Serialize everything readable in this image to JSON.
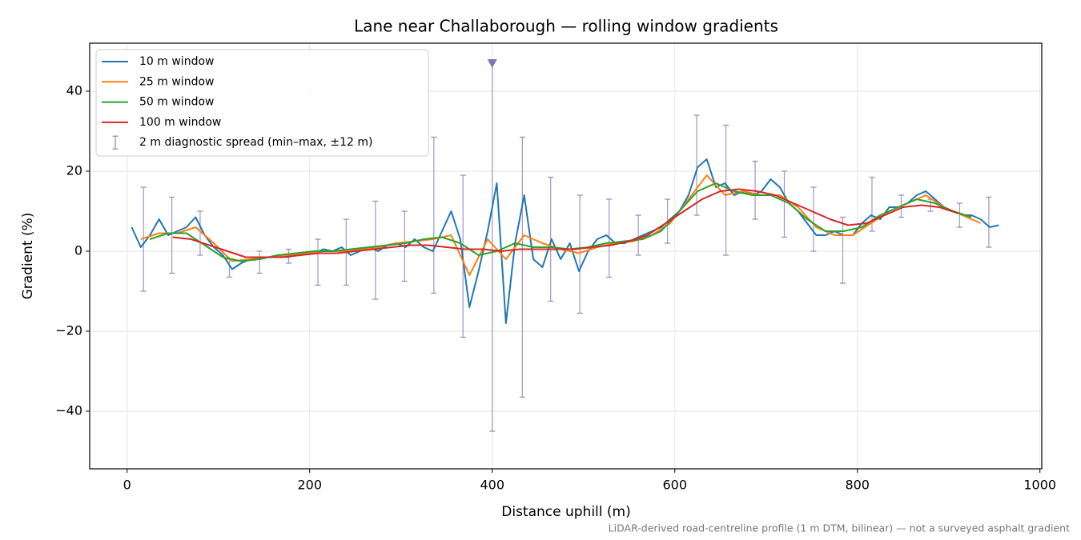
{
  "chart_data": {
    "type": "line",
    "title": "Lane near Challaborough — rolling window gradients",
    "xlabel": "Distance uphill (m)",
    "ylabel": "Gradient (%)",
    "note": "LiDAR-derived road-centreline profile (1 m DTM, bilinear) — not a surveyed asphalt gradient",
    "xlim": [
      -41,
      1002
    ],
    "ylim": [
      -54.4,
      52
    ],
    "xticks": [
      0,
      200,
      400,
      600,
      800,
      1000
    ],
    "yticks": [
      {
        "value": -40,
        "label": "−40"
      },
      {
        "value": -20,
        "label": "−20"
      },
      0,
      20,
      40
    ],
    "grid": true,
    "legend": "upper left",
    "series": [
      {
        "name": "10 m window",
        "color": "#1f77b4",
        "x": [
          5,
          15,
          25,
          35,
          45,
          55,
          65,
          75,
          85,
          95,
          105,
          115,
          125,
          135,
          145,
          155,
          165,
          175,
          185,
          195,
          205,
          215,
          225,
          235,
          245,
          255,
          265,
          275,
          285,
          295,
          305,
          315,
          325,
          335,
          345,
          355,
          365,
          375,
          385,
          395,
          405,
          415,
          425,
          435,
          445,
          455,
          465,
          475,
          485,
          495,
          505,
          515,
          525,
          535,
          545,
          555,
          565,
          575,
          585,
          595,
          605,
          615,
          625,
          635,
          645,
          655,
          665,
          675,
          685,
          695,
          705,
          715,
          725,
          735,
          745,
          755,
          765,
          775,
          785,
          795,
          805,
          815,
          825,
          835,
          845,
          855,
          865,
          875,
          885,
          895,
          905,
          915,
          925,
          935,
          945,
          955
        ],
        "values": [
          6,
          1,
          4,
          8,
          4,
          5,
          6,
          8.5,
          4,
          1,
          -1,
          -4.5,
          -3,
          -2,
          -2,
          -1.5,
          -1,
          -1.5,
          -1,
          -0.5,
          -0.5,
          0.5,
          0,
          1,
          -1,
          0,
          1,
          0,
          1.5,
          2,
          1,
          3,
          1,
          0,
          5,
          10,
          3,
          -14,
          -5,
          5,
          17,
          -18,
          2,
          14,
          -2,
          -4,
          3,
          -2,
          2,
          -5,
          0,
          3,
          4,
          2,
          2,
          3,
          4,
          5,
          6,
          8,
          10,
          14,
          21,
          23,
          16,
          17,
          14,
          15,
          14,
          15,
          18,
          16,
          12,
          10,
          7,
          4,
          4,
          5,
          4,
          4,
          7,
          9,
          8,
          11,
          11,
          12,
          14,
          15,
          13,
          11,
          10,
          9,
          9,
          8,
          6,
          6.5
        ]
      },
      {
        "name": "25 m window",
        "color": "#ff7f0e",
        "x": [
          15,
          35,
          55,
          75,
          95,
          115,
          135,
          155,
          175,
          195,
          215,
          235,
          255,
          275,
          295,
          315,
          335,
          355,
          375,
          395,
          415,
          435,
          455,
          475,
          495,
          515,
          535,
          555,
          575,
          595,
          615,
          635,
          655,
          675,
          695,
          715,
          735,
          755,
          775,
          795,
          815,
          835,
          855,
          875,
          895,
          915,
          935
        ],
        "values": [
          3,
          4.5,
          4.5,
          6,
          2,
          -2.5,
          -2,
          -1.5,
          -1,
          -0.5,
          0,
          0,
          0.5,
          1,
          2,
          2.5,
          3,
          4,
          -6,
          3,
          -2,
          4,
          2,
          0.5,
          -0.5,
          1,
          2,
          2.5,
          4,
          7,
          13,
          19,
          14,
          15,
          14,
          14,
          11,
          6,
          4,
          4,
          7,
          10,
          12,
          14,
          11,
          9,
          7
        ]
      },
      {
        "name": "50 m window",
        "color": "#2ca02c",
        "x": [
          25,
          45,
          65,
          85,
          105,
          125,
          145,
          165,
          185,
          205,
          225,
          245,
          265,
          285,
          305,
          325,
          345,
          365,
          385,
          405,
          425,
          445,
          465,
          485,
          505,
          525,
          545,
          565,
          585,
          605,
          625,
          645,
          665,
          685,
          705,
          725,
          745,
          765,
          785,
          805,
          825,
          845,
          865,
          885,
          905,
          925
        ],
        "values": [
          3,
          4.5,
          4.5,
          1.5,
          -1.5,
          -2.5,
          -2,
          -1,
          -0.5,
          0,
          0,
          0.5,
          1,
          1.5,
          2,
          3,
          3.5,
          2,
          -1,
          0,
          2,
          1,
          1,
          0.5,
          1,
          2,
          2.5,
          3,
          5,
          10,
          15,
          17,
          15,
          14,
          14,
          12,
          8,
          5,
          5,
          6,
          9,
          11,
          13,
          12,
          10,
          8.5
        ]
      },
      {
        "name": "100 m window",
        "color": "#d62728",
        "x": [
          50,
          70,
          90,
          110,
          130,
          150,
          170,
          190,
          210,
          230,
          250,
          270,
          290,
          310,
          330,
          350,
          370,
          390,
          410,
          430,
          450,
          470,
          490,
          510,
          530,
          550,
          570,
          590,
          610,
          630,
          650,
          670,
          690,
          710,
          730,
          750,
          770,
          790,
          810,
          830,
          850,
          870,
          890,
          910
        ],
        "values": [
          3.5,
          3,
          1.5,
          0,
          -1.5,
          -1.5,
          -1.5,
          -1,
          -0.5,
          -0.5,
          0,
          0.5,
          1,
          1.5,
          1.5,
          1,
          0.5,
          0.5,
          0,
          0.5,
          0.5,
          0.5,
          0.5,
          1,
          1.5,
          2.5,
          4,
          7,
          10,
          13,
          15,
          15.5,
          15,
          14,
          12,
          10,
          8,
          6.5,
          7,
          9,
          11,
          11.5,
          11,
          9.5
        ]
      }
    ],
    "errorbars": {
      "name": "2 m diagnostic spread (min–max, ±12 m)",
      "color": "#9a8fbf",
      "x": [
        18,
        49,
        80,
        112,
        145,
        177,
        209,
        240,
        272,
        304,
        336,
        368,
        400,
        433,
        464,
        496,
        528,
        560,
        592,
        624,
        656,
        688,
        720,
        752,
        784,
        816,
        848,
        880,
        912,
        944
      ],
      "low": [
        -10,
        -5.5,
        -1,
        -6.5,
        -5.5,
        -3,
        -8.5,
        -8.5,
        -12,
        -7.5,
        -10.5,
        -21.5,
        -45,
        -36.5,
        -12.5,
        -15.5,
        -6.5,
        -1,
        2,
        9,
        -1,
        8,
        3.5,
        0,
        -8,
        5,
        8.5,
        10,
        6,
        1
      ],
      "high": [
        16,
        13.5,
        10,
        -2,
        0,
        0.5,
        3,
        8,
        12.5,
        10,
        28.5,
        19,
        47,
        28.5,
        18.5,
        14,
        13,
        9,
        13,
        34,
        31.5,
        22.5,
        20,
        16,
        8.5,
        18.5,
        14,
        13,
        12,
        13.5
      ]
    },
    "spike_marker": {
      "x": 400,
      "y": 47,
      "color": "#8172b3"
    }
  }
}
